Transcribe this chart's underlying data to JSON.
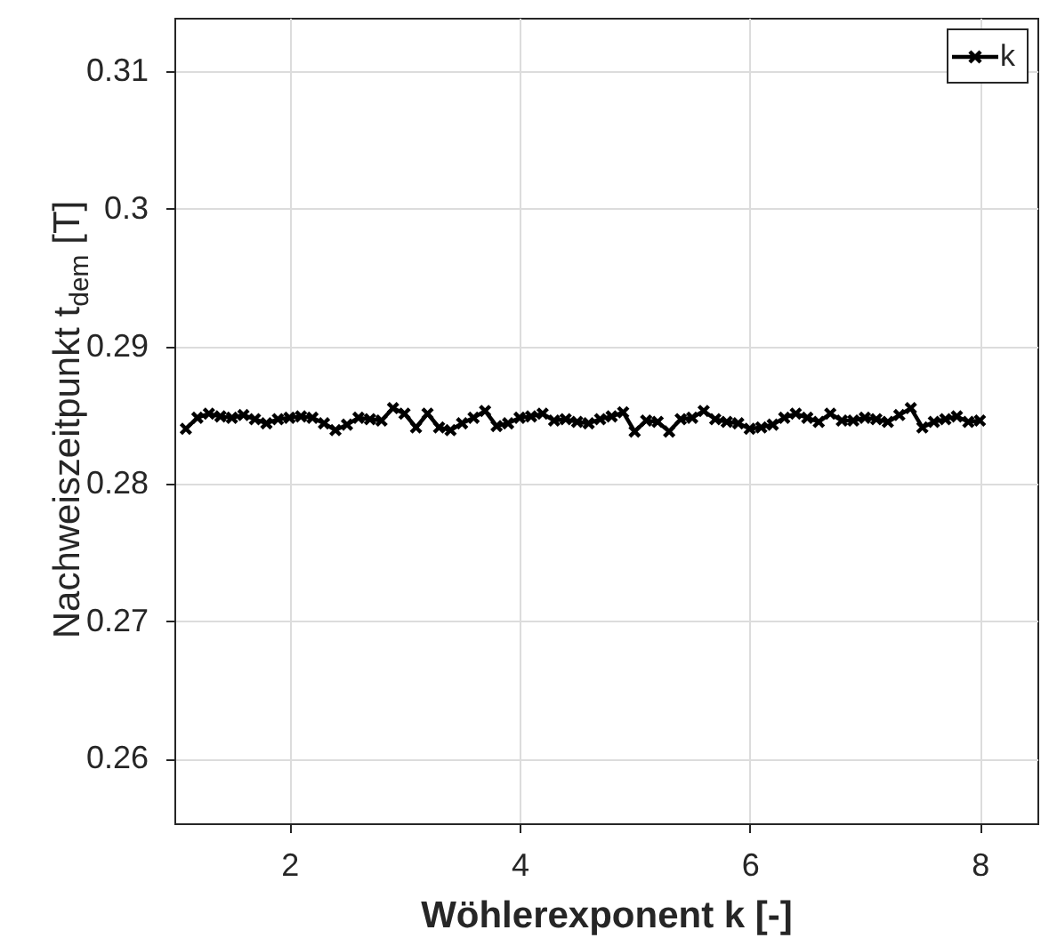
{
  "chart_data": {
    "type": "line",
    "xlabel": "Wöhlerexponent k [-]",
    "ylabel": "Nachweiszeitpunkt t$_{dem}$ [T]",
    "x": [
      1.1,
      1.2,
      1.3,
      1.4,
      1.5,
      1.6,
      1.7,
      1.8,
      1.9,
      2.0,
      2.1,
      2.2,
      2.3,
      2.4,
      2.5,
      2.6,
      2.7,
      2.8,
      2.9,
      3.0,
      3.1,
      3.2,
      3.3,
      3.4,
      3.5,
      3.6,
      3.7,
      3.8,
      3.9,
      4.0,
      4.1,
      4.2,
      4.3,
      4.4,
      4.5,
      4.6,
      4.7,
      4.8,
      4.9,
      5.0,
      5.1,
      5.2,
      5.3,
      5.4,
      5.5,
      5.6,
      5.7,
      5.8,
      5.9,
      6.0,
      6.1,
      6.2,
      6.3,
      6.4,
      6.5,
      6.6,
      6.7,
      6.8,
      6.9,
      7.0,
      7.1,
      7.2,
      7.3,
      7.4,
      7.5,
      7.6,
      7.7,
      7.8,
      7.9,
      8.0
    ],
    "series": [
      {
        "name": "k",
        "color": "#000000",
        "values": [
          0.284,
          0.2848,
          0.2851,
          0.2849,
          0.2848,
          0.285,
          0.2847,
          0.2844,
          0.2847,
          0.2848,
          0.2849,
          0.2848,
          0.2844,
          0.2839,
          0.2843,
          0.2848,
          0.2847,
          0.2846,
          0.2855,
          0.2851,
          0.2841,
          0.2851,
          0.2841,
          0.2839,
          0.2844,
          0.2848,
          0.2853,
          0.2842,
          0.2844,
          0.2848,
          0.2849,
          0.2851,
          0.2846,
          0.2847,
          0.2845,
          0.2844,
          0.2847,
          0.2849,
          0.2852,
          0.2838,
          0.2846,
          0.2845,
          0.2838,
          0.2847,
          0.2848,
          0.2853,
          0.2847,
          0.2845,
          0.2844,
          0.284,
          0.2841,
          0.2843,
          0.2848,
          0.2851,
          0.2848,
          0.2845,
          0.2851,
          0.2846,
          0.2846,
          0.2848,
          0.2847,
          0.2845,
          0.285,
          0.2855,
          0.2841,
          0.2845,
          0.2847,
          0.2849,
          0.2845,
          0.2846
        ]
      }
    ],
    "xlim": [
      1,
      8.5
    ],
    "xticks": [
      2,
      4,
      6,
      8
    ],
    "ylim": [
      0.2553,
      0.3139
    ],
    "yticks": [
      0.26,
      0.27,
      0.28,
      0.29,
      0.3,
      0.31
    ],
    "grid": true,
    "legend": "top right",
    "marker": "cross",
    "line_style": "solid"
  }
}
